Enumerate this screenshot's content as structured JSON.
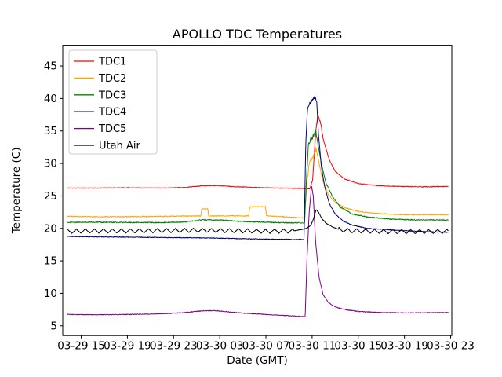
{
  "chart_data": {
    "type": "line",
    "title": "APOLLO TDC Temperatures",
    "xlabel": "Date (GMT)",
    "ylabel": "Temperature (C)",
    "x_unit_note": "hours since 03-29 12:00 GMT",
    "xlim": [
      1.4,
      35.1
    ],
    "ylim": [
      3.5,
      48.2
    ],
    "grid": false,
    "legend_position": "upper-left",
    "x_ticks": [
      {
        "t": 3,
        "label": "03-29 15"
      },
      {
        "t": 7,
        "label": "03-29 19"
      },
      {
        "t": 11,
        "label": "03-29 23"
      },
      {
        "t": 15,
        "label": "03-30 03"
      },
      {
        "t": 19,
        "label": "03-30 07"
      },
      {
        "t": 23,
        "label": "03-30 11"
      },
      {
        "t": 27,
        "label": "03-30 15"
      },
      {
        "t": 31,
        "label": "03-30 19"
      },
      {
        "t": 35,
        "label": "03-30 23"
      }
    ],
    "y_ticks": [
      5,
      10,
      15,
      20,
      25,
      30,
      35,
      40,
      45
    ],
    "series": [
      {
        "name": "TDC1",
        "color": "#ff0000",
        "noise": 0.05,
        "noise_ranges": [
          {
            "from": 23.1,
            "to": 24.0,
            "amp": 0.2
          }
        ],
        "points": [
          [
            1.8,
            26.2
          ],
          [
            4,
            26.2
          ],
          [
            7,
            26.25
          ],
          [
            10,
            26.2
          ],
          [
            12,
            26.3
          ],
          [
            13.4,
            26.55
          ],
          [
            14.6,
            26.6
          ],
          [
            16,
            26.45
          ],
          [
            18,
            26.3
          ],
          [
            20,
            26.2
          ],
          [
            21.5,
            26.15
          ],
          [
            22.8,
            26.1
          ],
          [
            23.05,
            27.5
          ],
          [
            23.3,
            34.5
          ],
          [
            23.5,
            37.5
          ],
          [
            23.7,
            36.5
          ],
          [
            24.0,
            33.5
          ],
          [
            24.5,
            30.5
          ],
          [
            25.0,
            28.8
          ],
          [
            25.8,
            27.6
          ],
          [
            27,
            26.9
          ],
          [
            28.5,
            26.6
          ],
          [
            30.5,
            26.45
          ],
          [
            33,
            26.4
          ],
          [
            34.8,
            26.45
          ]
        ]
      },
      {
        "name": "TDC2",
        "color": "#ffa500",
        "noise": 0.06,
        "noise_ranges": [
          {
            "from": 22.5,
            "to": 23.5,
            "amp": 0.25
          }
        ],
        "points": [
          [
            1.8,
            21.85
          ],
          [
            4,
            21.8
          ],
          [
            7,
            21.8
          ],
          [
            10,
            21.85
          ],
          [
            12,
            21.9
          ],
          [
            13.35,
            21.9
          ],
          [
            13.45,
            23.0
          ],
          [
            13.95,
            23.0
          ],
          [
            14.05,
            21.9
          ],
          [
            16,
            21.95
          ],
          [
            17.5,
            21.9
          ],
          [
            17.6,
            23.3
          ],
          [
            18.95,
            23.35
          ],
          [
            19.05,
            21.95
          ],
          [
            20.5,
            21.8
          ],
          [
            21.8,
            21.65
          ],
          [
            22.35,
            21.6
          ],
          [
            22.55,
            27.0
          ],
          [
            22.75,
            30.2
          ],
          [
            23.0,
            30.8
          ],
          [
            23.2,
            31.5
          ],
          [
            23.35,
            32.3
          ],
          [
            23.55,
            30.5
          ],
          [
            23.9,
            27.5
          ],
          [
            24.4,
            25.2
          ],
          [
            25.0,
            24.0
          ],
          [
            25.8,
            23.2
          ],
          [
            27,
            22.6
          ],
          [
            28.5,
            22.3
          ],
          [
            31,
            22.1
          ],
          [
            34.8,
            22.1
          ]
        ]
      },
      {
        "name": "TDC3",
        "color": "#008000",
        "noise": 0.07,
        "noise_ranges": [
          {
            "from": 22.5,
            "to": 23.5,
            "amp": 0.4
          }
        ],
        "points": [
          [
            1.8,
            20.9
          ],
          [
            4,
            20.95
          ],
          [
            7,
            20.9
          ],
          [
            10,
            20.9
          ],
          [
            12,
            21.0
          ],
          [
            13.4,
            21.3
          ],
          [
            15,
            21.3
          ],
          [
            16.5,
            21.1
          ],
          [
            18,
            21.0
          ],
          [
            20,
            20.9
          ],
          [
            21.5,
            20.85
          ],
          [
            22.35,
            20.85
          ],
          [
            22.55,
            29.0
          ],
          [
            22.7,
            33.3
          ],
          [
            22.9,
            33.6
          ],
          [
            23.1,
            34.2
          ],
          [
            23.3,
            35.0
          ],
          [
            23.5,
            33.0
          ],
          [
            23.8,
            30.0
          ],
          [
            24.2,
            27.0
          ],
          [
            24.8,
            24.8
          ],
          [
            25.5,
            23.2
          ],
          [
            26.5,
            22.2
          ],
          [
            28,
            21.7
          ],
          [
            30,
            21.4
          ],
          [
            32.5,
            21.3
          ],
          [
            34.8,
            21.3
          ]
        ]
      },
      {
        "name": "TDC4",
        "color": "#000080",
        "noise": 0.05,
        "noise_ranges": [
          {
            "from": 22.4,
            "to": 23.45,
            "amp": 0.2
          }
        ],
        "points": [
          [
            1.8,
            18.75
          ],
          [
            4,
            18.7
          ],
          [
            7,
            18.65
          ],
          [
            10,
            18.6
          ],
          [
            13,
            18.55
          ],
          [
            16,
            18.45
          ],
          [
            19,
            18.35
          ],
          [
            21.5,
            18.3
          ],
          [
            22.3,
            18.3
          ],
          [
            22.45,
            33.0
          ],
          [
            22.6,
            38.5
          ],
          [
            22.8,
            39.3
          ],
          [
            23.0,
            39.7
          ],
          [
            23.25,
            40.3
          ],
          [
            23.4,
            39.5
          ],
          [
            23.55,
            34.5
          ],
          [
            23.8,
            29.5
          ],
          [
            24.1,
            26.3
          ],
          [
            24.5,
            23.8
          ],
          [
            25.0,
            22.2
          ],
          [
            25.7,
            21.1
          ],
          [
            26.5,
            20.5
          ],
          [
            27.8,
            20.0
          ],
          [
            29.5,
            19.8
          ],
          [
            31.5,
            19.6
          ],
          [
            33.5,
            19.45
          ],
          [
            34.8,
            19.4
          ]
        ]
      },
      {
        "name": "TDC5",
        "color": "#800080",
        "noise": 0.05,
        "noise_ranges": [],
        "points": [
          [
            1.8,
            6.75
          ],
          [
            4,
            6.7
          ],
          [
            7,
            6.75
          ],
          [
            10,
            6.85
          ],
          [
            12,
            7.05
          ],
          [
            13.5,
            7.3
          ],
          [
            14.5,
            7.35
          ],
          [
            15.5,
            7.2
          ],
          [
            17,
            6.95
          ],
          [
            18.5,
            6.8
          ],
          [
            20,
            6.65
          ],
          [
            21.5,
            6.5
          ],
          [
            22.4,
            6.4
          ],
          [
            22.55,
            15.0
          ],
          [
            22.75,
            22.5
          ],
          [
            22.95,
            26.5
          ],
          [
            23.1,
            25.0
          ],
          [
            23.3,
            18.0
          ],
          [
            23.6,
            12.5
          ],
          [
            23.95,
            9.8
          ],
          [
            24.4,
            8.6
          ],
          [
            25.0,
            7.9
          ],
          [
            25.8,
            7.5
          ],
          [
            27,
            7.2
          ],
          [
            29,
            7.05
          ],
          [
            31.5,
            7.0
          ],
          [
            34.8,
            7.05
          ]
        ]
      },
      {
        "name": "Utah Air",
        "color": "#000000",
        "noise": 0.04,
        "noise_ranges": [],
        "oscillation": {
          "amp": 0.32,
          "period": 0.78,
          "ranges": [
            [
              1.8,
              21.4
            ],
            [
              25.3,
              34.8
            ]
          ]
        },
        "points": [
          [
            1.8,
            19.55
          ],
          [
            4,
            19.6
          ],
          [
            7,
            19.6
          ],
          [
            10,
            19.65
          ],
          [
            13,
            19.7
          ],
          [
            16,
            19.65
          ],
          [
            19,
            19.55
          ],
          [
            21.4,
            19.6
          ],
          [
            22.0,
            19.8
          ],
          [
            22.5,
            20.0
          ],
          [
            22.9,
            20.5
          ],
          [
            23.1,
            21.4
          ],
          [
            23.35,
            22.9
          ],
          [
            23.55,
            22.5
          ],
          [
            23.85,
            21.5
          ],
          [
            24.2,
            20.8
          ],
          [
            24.7,
            20.3
          ],
          [
            25.2,
            19.9
          ],
          [
            26,
            19.65
          ],
          [
            28,
            19.55
          ],
          [
            30,
            19.5
          ],
          [
            32.5,
            19.5
          ],
          [
            34.8,
            19.55
          ]
        ]
      }
    ]
  }
}
